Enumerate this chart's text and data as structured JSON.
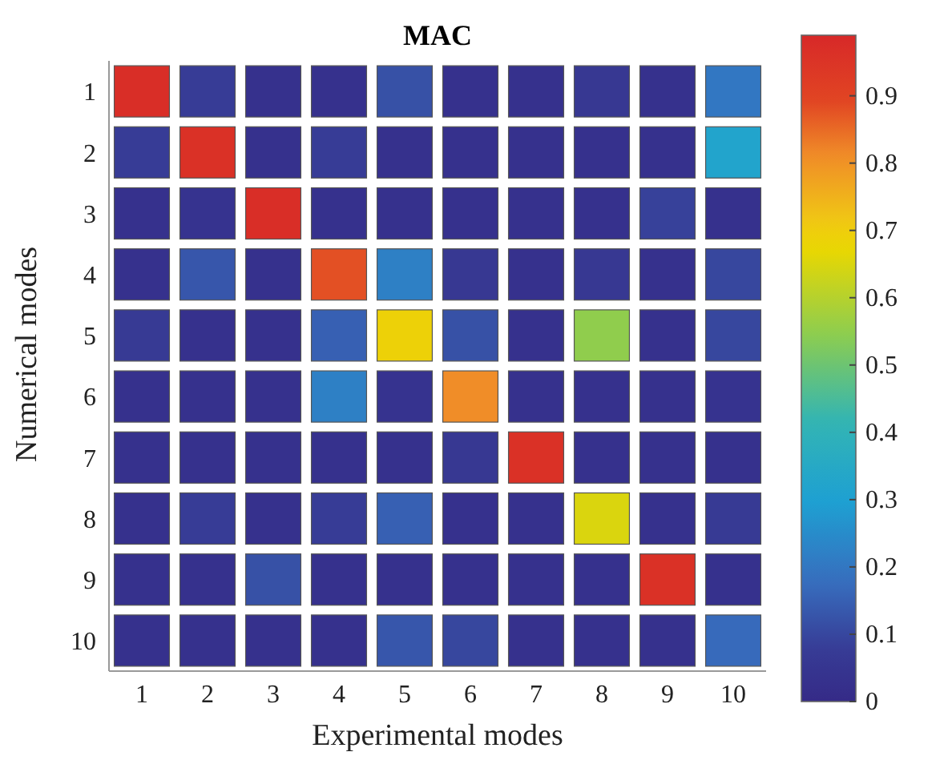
{
  "chart_data": {
    "type": "heatmap",
    "title": "MAC",
    "xlabel": "Experimental modes",
    "ylabel": "Numerical modes",
    "categories": [
      "1",
      "2",
      "3",
      "4",
      "5",
      "6",
      "7",
      "8",
      "9",
      "10"
    ],
    "y_categories": [
      "1",
      "2",
      "3",
      "4",
      "5",
      "6",
      "7",
      "8",
      "9",
      "10"
    ],
    "cells": [
      [
        0.97,
        0.08,
        0.03,
        0.03,
        0.12,
        0.03,
        0.03,
        0.06,
        0.03,
        0.2
      ],
      [
        0.08,
        0.96,
        0.03,
        0.08,
        0.03,
        0.03,
        0.03,
        0.03,
        0.03,
        0.32
      ],
      [
        0.03,
        0.04,
        0.97,
        0.03,
        0.03,
        0.03,
        0.03,
        0.03,
        0.09,
        0.03
      ],
      [
        0.03,
        0.13,
        0.03,
        0.88,
        0.22,
        0.06,
        0.03,
        0.06,
        0.03,
        0.1
      ],
      [
        0.07,
        0.03,
        0.03,
        0.15,
        0.69,
        0.12,
        0.03,
        0.55,
        0.03,
        0.1
      ],
      [
        0.03,
        0.03,
        0.03,
        0.22,
        0.04,
        0.81,
        0.03,
        0.03,
        0.03,
        0.04
      ],
      [
        0.03,
        0.03,
        0.03,
        0.03,
        0.03,
        0.06,
        0.96,
        0.03,
        0.03,
        0.03
      ],
      [
        0.03,
        0.08,
        0.03,
        0.08,
        0.15,
        0.03,
        0.03,
        0.65,
        0.03,
        0.07
      ],
      [
        0.03,
        0.03,
        0.12,
        0.03,
        0.03,
        0.03,
        0.03,
        0.03,
        0.96,
        0.03
      ],
      [
        0.03,
        0.03,
        0.03,
        0.03,
        0.13,
        0.1,
        0.03,
        0.03,
        0.03,
        0.17
      ]
    ],
    "clim": [
      0,
      0.99
    ],
    "cticks": [
      0,
      0.1,
      0.2,
      0.3,
      0.4,
      0.5,
      0.6,
      0.7,
      0.8,
      0.9
    ]
  }
}
